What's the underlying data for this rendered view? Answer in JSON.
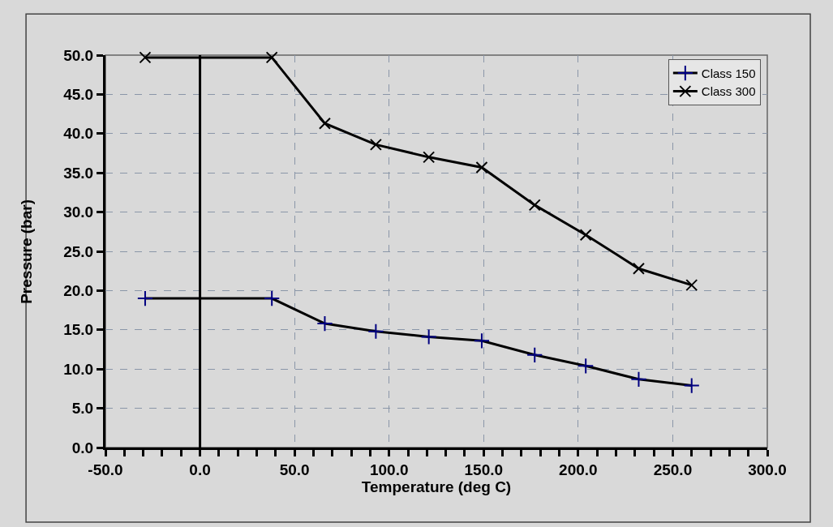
{
  "chart_data": {
    "type": "line",
    "xlabel": "Temperature (deg C)",
    "ylabel": "Pressure (bar)",
    "series": [
      {
        "name": "Class 150",
        "color": "#000000",
        "marker": "cross",
        "x": [
          -29,
          38,
          66,
          93,
          121,
          149,
          177,
          204,
          232,
          260
        ],
        "values": [
          19.0,
          19.0,
          15.8,
          14.8,
          14.1,
          13.6,
          11.8,
          10.4,
          8.7,
          7.9
        ]
      },
      {
        "name": "Class 300",
        "color": "#000000",
        "marker": "x",
        "x": [
          -29,
          38,
          66,
          93,
          121,
          149,
          177,
          204,
          232,
          260
        ],
        "values": [
          49.7,
          49.7,
          41.3,
          38.6,
          37.0,
          35.7,
          30.9,
          27.1,
          22.8,
          20.7
        ]
      }
    ],
    "xlim": [
      -50,
      300
    ],
    "xticks": [
      {
        "value": -50,
        "label": "-50.0"
      },
      {
        "value": -40,
        "label": null
      },
      {
        "value": -30,
        "label": null
      },
      {
        "value": -20,
        "label": null
      },
      {
        "value": -10,
        "label": null
      },
      {
        "value": 0,
        "label": "0.0"
      },
      {
        "value": 10,
        "label": null
      },
      {
        "value": 20,
        "label": null
      },
      {
        "value": 30,
        "label": null
      },
      {
        "value": 40,
        "label": null
      },
      {
        "value": 50,
        "label": "50.0"
      },
      {
        "value": 60,
        "label": null
      },
      {
        "value": 70,
        "label": null
      },
      {
        "value": 80,
        "label": null
      },
      {
        "value": 90,
        "label": null
      },
      {
        "value": 100,
        "label": "100.0"
      },
      {
        "value": 110,
        "label": null
      },
      {
        "value": 120,
        "label": null
      },
      {
        "value": 130,
        "label": null
      },
      {
        "value": 140,
        "label": null
      },
      {
        "value": 150,
        "label": "150.0"
      },
      {
        "value": 160,
        "label": null
      },
      {
        "value": 170,
        "label": null
      },
      {
        "value": 180,
        "label": null
      },
      {
        "value": 190,
        "label": null
      },
      {
        "value": 200,
        "label": "200.0"
      },
      {
        "value": 210,
        "label": null
      },
      {
        "value": 220,
        "label": null
      },
      {
        "value": 230,
        "label": null
      },
      {
        "value": 240,
        "label": null
      },
      {
        "value": 250,
        "label": "250.0"
      },
      {
        "value": 260,
        "label": null
      },
      {
        "value": 270,
        "label": null
      },
      {
        "value": 280,
        "label": null
      },
      {
        "value": 290,
        "label": null
      },
      {
        "value": 300,
        "label": "300.0"
      }
    ],
    "ylim": [
      0,
      50
    ],
    "yticks": [
      {
        "value": 0,
        "label": "0.0"
      },
      {
        "value": 5,
        "label": "5.0"
      },
      {
        "value": 10,
        "label": "10.0"
      },
      {
        "value": 15,
        "label": "15.0"
      },
      {
        "value": 20,
        "label": "20.0"
      },
      {
        "value": 25,
        "label": "25.0"
      },
      {
        "value": 30,
        "label": "30.0"
      },
      {
        "value": 35,
        "label": "35.0"
      },
      {
        "value": 40,
        "label": "40.0"
      },
      {
        "value": 45,
        "label": "45.0"
      },
      {
        "value": 50,
        "label": "50.0"
      }
    ],
    "grid": true,
    "legend": "top right",
    "line_style": "solid"
  }
}
